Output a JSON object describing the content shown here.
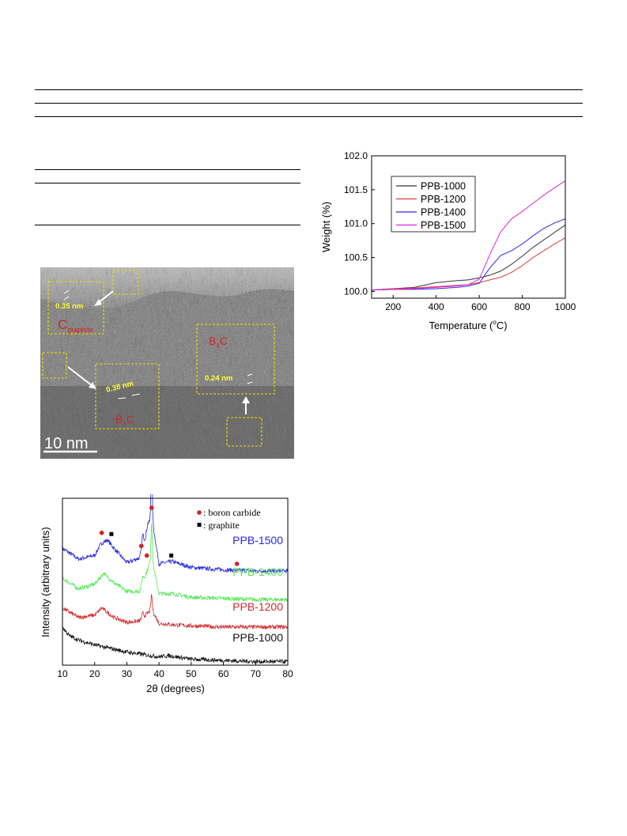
{
  "tem": {
    "labels": {
      "lattice_graphite": "0.35 nm",
      "c_graphite_main": "C",
      "c_graphite_sub": "graphite",
      "b4c_right_B": "B",
      "b4c_right_sub": "4",
      "b4c_right_C": "C",
      "lattice_right": "0.24 nm",
      "lattice_center": "0.38 nm",
      "b4c_center_B": "B",
      "b4c_center_sub": "4",
      "b4c_center_C": "C",
      "scale_bar": "10 nm"
    },
    "colors": {
      "box": "#e8e000",
      "label_red": "#c8262a",
      "label_yellow": "#ffff33"
    }
  },
  "chart_data": [
    {
      "type": "line",
      "xlabel": "2θ (degrees)",
      "ylabel": "Intensity (arbitrary units)",
      "xlim": [
        10,
        80
      ],
      "x_ticks": [
        "10",
        "20",
        "30",
        "40",
        "50",
        "60",
        "70",
        "80"
      ],
      "legend": [
        {
          "symbol": "●",
          "text": ": boron carbide",
          "color": "#d42020"
        },
        {
          "symbol": "■",
          "text": ": graphite",
          "color": "#000000"
        }
      ],
      "series": [
        {
          "name": "PPB-1500",
          "color": "#2626e0",
          "baseline": 0.83,
          "peaks": [
            [
              23.5,
              0.15,
              3.6
            ],
            [
              34.9,
              0.1,
              0.45
            ],
            [
              37.7,
              0.42,
              0.3
            ],
            [
              36.5,
              0.05,
              0.5
            ],
            [
              43.5,
              0.04,
              2.5
            ]
          ],
          "x": [
            10,
            15,
            20,
            22,
            24,
            26,
            30,
            34,
            37.7,
            40,
            44,
            50,
            60,
            70,
            80
          ],
          "y": [
            0.98,
            0.89,
            0.92,
            1.02,
            1.05,
            0.98,
            0.86,
            0.9,
            1.25,
            0.85,
            0.87,
            0.82,
            0.8,
            0.79,
            0.79
          ]
        },
        {
          "name": "PPB-1400",
          "color": "#55e855",
          "baseline": 0.58,
          "peaks": [
            [
              22.8,
              0.15,
              3.6
            ],
            [
              34.9,
              0.05,
              0.45
            ],
            [
              37.7,
              0.3,
              0.3
            ],
            [
              43.5,
              0.03,
              2.5
            ]
          ],
          "x": [
            10,
            15,
            20,
            22.8,
            26,
            30,
            34,
            37.7,
            40,
            44,
            50,
            60,
            70,
            80
          ],
          "y": [
            0.73,
            0.64,
            0.68,
            0.77,
            0.69,
            0.62,
            0.62,
            0.9,
            0.6,
            0.6,
            0.57,
            0.56,
            0.55,
            0.55
          ]
        },
        {
          "name": "PPB-1200",
          "color": "#d42a2a",
          "baseline": 0.35,
          "peaks": [
            [
              22.2,
              0.11,
              3.3
            ],
            [
              34.9,
              0.04,
              0.45
            ],
            [
              37.7,
              0.12,
              0.3
            ],
            [
              43,
              0.02,
              2.5
            ]
          ],
          "x": [
            10,
            15,
            20,
            22.2,
            26,
            30,
            34,
            37.7,
            40,
            44,
            50,
            60,
            70,
            80
          ],
          "y": [
            0.48,
            0.4,
            0.42,
            0.48,
            0.4,
            0.36,
            0.37,
            0.47,
            0.35,
            0.34,
            0.33,
            0.32,
            0.32,
            0.32
          ]
        },
        {
          "name": "PPB-1000",
          "color": "#111111",
          "baseline": 0.06,
          "peaks": [
            [
              43,
              0.03,
              3
            ]
          ],
          "x": [
            10,
            12,
            15,
            20,
            25,
            30,
            35,
            40,
            43,
            50,
            60,
            70,
            80
          ],
          "y": [
            0.32,
            0.25,
            0.21,
            0.17,
            0.14,
            0.11,
            0.09,
            0.07,
            0.08,
            0.05,
            0.04,
            0.03,
            0.03
          ]
        }
      ],
      "markers": [
        {
          "type": "circle",
          "x": 22.2,
          "y": 1.11,
          "color": "#d42020"
        },
        {
          "type": "square",
          "x": 25.2,
          "y": 1.1,
          "color": "#000000"
        },
        {
          "type": "circle",
          "x": 34.5,
          "y": 1.0,
          "color": "#d42020"
        },
        {
          "type": "circle",
          "x": 36.2,
          "y": 0.92,
          "color": "#d42020"
        },
        {
          "type": "circle",
          "x": 37.7,
          "y": 1.32,
          "color": "#d42020"
        },
        {
          "type": "square",
          "x": 43.8,
          "y": 0.92,
          "color": "#000000"
        },
        {
          "type": "circle",
          "x": 64.2,
          "y": 0.85,
          "color": "#d42020"
        }
      ]
    },
    {
      "type": "line",
      "xlabel": "Temperature (°C)",
      "xlabel_parts": [
        "Temperature (",
        "o",
        "C)"
      ],
      "ylabel": "Weight (%)",
      "xlim": [
        100,
        1000
      ],
      "ylim": [
        99.9,
        102.0
      ],
      "x_ticks": [
        200,
        400,
        600,
        800,
        1000
      ],
      "y_ticks": [
        "100.0",
        "100.5",
        "101.0",
        "101.5",
        "102.0"
      ],
      "legend_position": "top-left",
      "series": [
        {
          "name": "PPB-1000",
          "color": "#333333",
          "x": [
            100,
            200,
            300,
            400,
            500,
            550,
            600,
            650,
            700,
            750,
            800,
            850,
            900,
            950,
            1000
          ],
          "y": [
            100.02,
            100.04,
            100.06,
            100.13,
            100.16,
            100.17,
            100.2,
            100.24,
            100.3,
            100.4,
            100.52,
            100.65,
            100.76,
            100.87,
            100.98
          ]
        },
        {
          "name": "PPB-1200",
          "color": "#e03c3c",
          "x": [
            100,
            200,
            300,
            400,
            500,
            550,
            600,
            650,
            700,
            750,
            800,
            850,
            900,
            950,
            1000
          ],
          "y": [
            100.02,
            100.04,
            100.05,
            100.07,
            100.09,
            100.1,
            100.13,
            100.17,
            100.21,
            100.28,
            100.38,
            100.5,
            100.6,
            100.7,
            100.79
          ]
        },
        {
          "name": "PPB-1400",
          "color": "#2a2ae0",
          "x": [
            100,
            200,
            300,
            400,
            500,
            550,
            600,
            650,
            700,
            750,
            800,
            850,
            900,
            950,
            1000
          ],
          "y": [
            100.02,
            100.03,
            100.03,
            100.04,
            100.06,
            100.08,
            100.12,
            100.35,
            100.53,
            100.6,
            100.7,
            100.82,
            100.93,
            101.01,
            101.07
          ]
        },
        {
          "name": "PPB-1500",
          "color": "#dd22dd",
          "x": [
            100,
            200,
            300,
            400,
            500,
            550,
            600,
            650,
            700,
            750,
            800,
            850,
            900,
            950,
            1000
          ],
          "y": [
            100.02,
            100.03,
            100.04,
            100.06,
            100.08,
            100.1,
            100.18,
            100.55,
            100.88,
            101.07,
            101.18,
            101.3,
            101.42,
            101.53,
            101.63
          ]
        }
      ]
    }
  ]
}
